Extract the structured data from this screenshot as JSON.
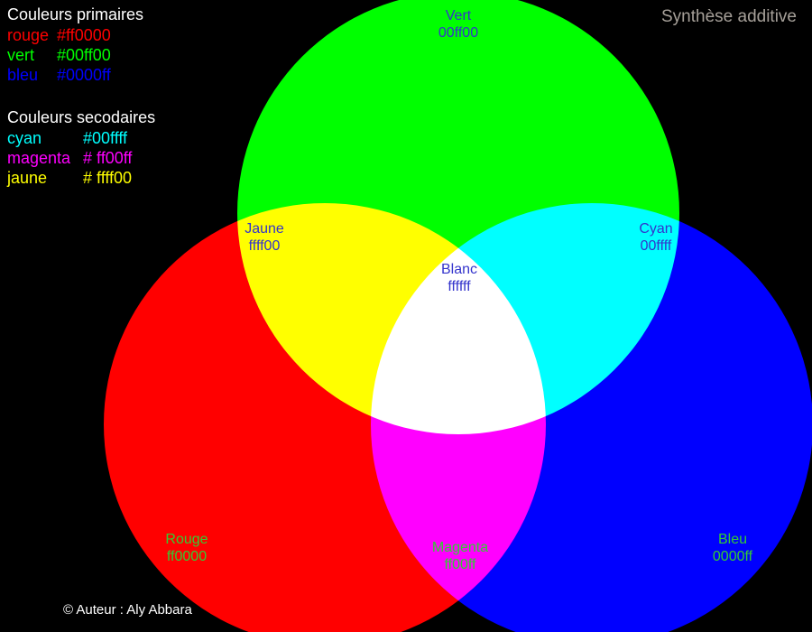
{
  "header": {
    "title": "Synthèse additive"
  },
  "legend": {
    "primary_title": "Couleurs primaires",
    "primary": [
      {
        "name": "rouge",
        "value": "#ff0000",
        "color": "#ff0000"
      },
      {
        "name": "vert",
        "value": "#00ff00",
        "color": "#00ff00"
      },
      {
        "name": "bleu",
        "value": "#0000ff",
        "color": "#0000ff"
      }
    ],
    "secondary_title": "Couleurs secodaires",
    "secondary": [
      {
        "name": "cyan",
        "value": "#00ffff",
        "color": "#00ffff"
      },
      {
        "name": "magenta",
        "value": "# ff00ff",
        "color": "#ff00ff"
      },
      {
        "name": "jaune",
        "value": "# ffff00",
        "color": "#ffff00"
      }
    ]
  },
  "diagram": {
    "circles": [
      {
        "id": "rouge",
        "color": "#ff0000"
      },
      {
        "id": "vert",
        "color": "#00ff00"
      },
      {
        "id": "bleu",
        "color": "#0000ff"
      }
    ],
    "labels": {
      "vert": {
        "title": "Vert",
        "hex": "00ff00"
      },
      "jaune": {
        "title": "Jaune",
        "hex": "ffff00"
      },
      "cyan": {
        "title": "Cyan",
        "hex": "00ffff"
      },
      "blanc": {
        "title": "Blanc",
        "hex": "ffffff"
      },
      "rouge": {
        "title": "Rouge",
        "hex": "ff0000"
      },
      "magenta": {
        "title": "Magenta",
        "hex": "ff00ff"
      },
      "bleu": {
        "title": "Bleu",
        "hex": "0000ff"
      }
    },
    "label_text_colors": {
      "on_top": "#3333cc",
      "on_bottom": "#33cc33"
    }
  },
  "footer": {
    "credit": "© Auteur : Aly Abbara"
  }
}
